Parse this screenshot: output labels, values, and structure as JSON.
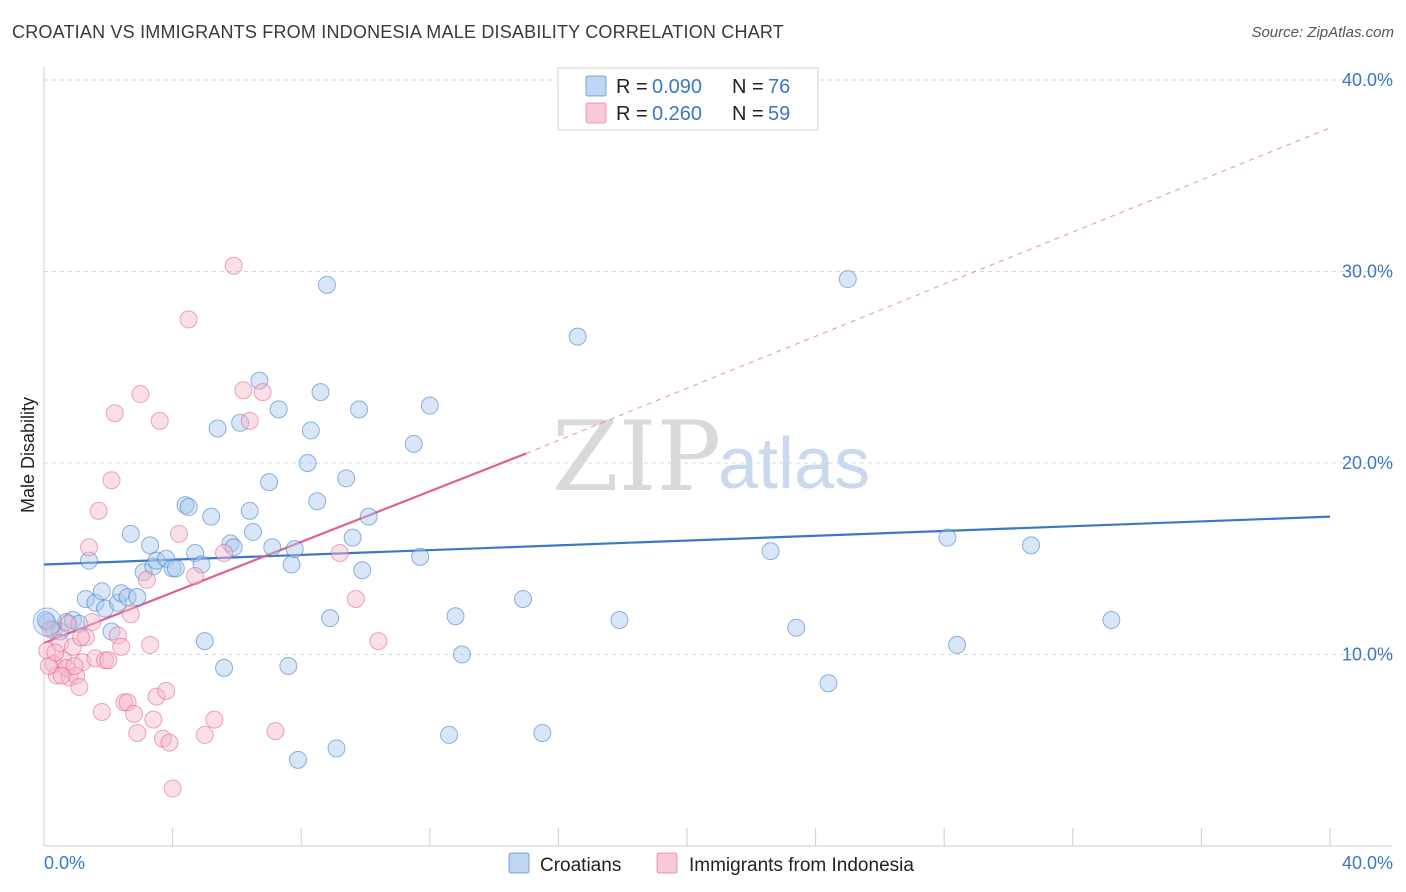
{
  "chart_data": {
    "type": "scatter",
    "title": "CROATIAN VS IMMIGRANTS FROM INDONESIA MALE DISABILITY CORRELATION CHART",
    "source": "Source: ZipAtlas.com",
    "ylabel": "Male Disability",
    "xlim": [
      0,
      40
    ],
    "ylim": [
      0,
      40
    ],
    "x_tick_labels": [
      "0.0%",
      "40.0%"
    ],
    "y_ticks": [
      10,
      20,
      30,
      40
    ],
    "y_tick_labels": [
      "10.0%",
      "20.0%",
      "30.0%",
      "40.0%"
    ],
    "watermark": {
      "zip": "ZIP",
      "atlas": "atlas"
    },
    "legend": {
      "entries": [
        {
          "r_label": "R = ",
          "r_value": "0.090",
          "n_label": "N = ",
          "n_value": "76"
        },
        {
          "r_label": "R = ",
          "r_value": "0.260",
          "n_label": "N = ",
          "n_value": "59"
        }
      ]
    },
    "series": [
      {
        "name": "Croatians",
        "color": "#3a78c6",
        "fill": "#a9c7ee",
        "trend": {
          "x": [
            0,
            40
          ],
          "y": [
            14.7,
            17.2
          ],
          "style": "solid"
        },
        "points": [
          [
            0.1,
            11.7
          ],
          [
            0.3,
            11.3
          ],
          [
            0.5,
            11.2
          ],
          [
            0.7,
            11.7
          ],
          [
            0.9,
            11.8
          ],
          [
            1.1,
            11.6
          ],
          [
            1.3,
            12.9
          ],
          [
            1.4,
            14.9
          ],
          [
            1.6,
            12.7
          ],
          [
            1.8,
            13.3
          ],
          [
            1.9,
            12.4
          ],
          [
            2.1,
            11.2
          ],
          [
            2.3,
            12.7
          ],
          [
            2.4,
            13.2
          ],
          [
            2.6,
            13.0
          ],
          [
            2.7,
            16.3
          ],
          [
            2.9,
            13.0
          ],
          [
            3.1,
            14.3
          ],
          [
            3.3,
            15.7
          ],
          [
            3.4,
            14.6
          ],
          [
            3.5,
            14.9
          ],
          [
            3.8,
            15.0
          ],
          [
            4.0,
            14.5
          ],
          [
            4.1,
            14.5
          ],
          [
            4.4,
            17.8
          ],
          [
            4.5,
            17.7
          ],
          [
            4.7,
            15.3
          ],
          [
            4.9,
            14.7
          ],
          [
            5.0,
            10.7
          ],
          [
            5.2,
            17.2
          ],
          [
            5.4,
            21.8
          ],
          [
            5.6,
            9.3
          ],
          [
            5.8,
            15.8
          ],
          [
            5.9,
            15.6
          ],
          [
            6.1,
            22.1
          ],
          [
            6.4,
            17.5
          ],
          [
            6.5,
            16.4
          ],
          [
            6.7,
            24.3
          ],
          [
            7.0,
            19.0
          ],
          [
            7.1,
            15.6
          ],
          [
            7.3,
            22.8
          ],
          [
            7.6,
            9.4
          ],
          [
            7.7,
            14.7
          ],
          [
            7.8,
            15.5
          ],
          [
            7.9,
            4.5
          ],
          [
            8.2,
            20.0
          ],
          [
            8.3,
            21.7
          ],
          [
            8.5,
            18.0
          ],
          [
            8.6,
            23.7
          ],
          [
            8.8,
            29.3
          ],
          [
            8.9,
            11.9
          ],
          [
            9.1,
            5.1
          ],
          [
            9.4,
            19.2
          ],
          [
            9.6,
            16.1
          ],
          [
            9.8,
            22.8
          ],
          [
            9.9,
            14.4
          ],
          [
            10.1,
            17.2
          ],
          [
            11.5,
            21.0
          ],
          [
            11.7,
            15.1
          ],
          [
            12.0,
            23.0
          ],
          [
            12.6,
            5.8
          ],
          [
            12.8,
            12.0
          ],
          [
            13.0,
            10.0
          ],
          [
            14.9,
            12.9
          ],
          [
            15.5,
            5.9
          ],
          [
            16.6,
            26.6
          ],
          [
            17.9,
            11.8
          ],
          [
            22.6,
            15.4
          ],
          [
            23.4,
            11.4
          ],
          [
            24.4,
            8.5
          ],
          [
            25.0,
            29.6
          ],
          [
            28.1,
            16.1
          ],
          [
            28.4,
            10.5
          ],
          [
            30.7,
            15.7
          ],
          [
            33.2,
            11.8
          ],
          [
            0.05,
            11.8
          ]
        ]
      },
      {
        "name": "Immigrants from Indonesia",
        "color": "#e0608e",
        "fill": "#f6b7cb",
        "trend": {
          "x": [
            0,
            15
          ],
          "y": [
            10.6,
            20.5
          ],
          "style": "solid",
          "ext_x": [
            15,
            40
          ],
          "ext_y": [
            20.5,
            37.5
          ],
          "ext_style": "dashed"
        },
        "points": [
          [
            0.1,
            10.2
          ],
          [
            0.2,
            11.3
          ],
          [
            0.3,
            9.5
          ],
          [
            0.4,
            8.9
          ],
          [
            0.5,
            10.6
          ],
          [
            0.6,
            9.7
          ],
          [
            0.7,
            9.3
          ],
          [
            0.8,
            8.8
          ],
          [
            0.9,
            10.4
          ],
          [
            1.0,
            8.9
          ],
          [
            1.1,
            8.3
          ],
          [
            1.2,
            9.6
          ],
          [
            1.3,
            10.9
          ],
          [
            1.4,
            15.6
          ],
          [
            1.5,
            11.7
          ],
          [
            1.6,
            9.8
          ],
          [
            1.7,
            17.5
          ],
          [
            1.8,
            7.0
          ],
          [
            1.9,
            9.7
          ],
          [
            2.0,
            9.7
          ],
          [
            2.1,
            19.1
          ],
          [
            2.2,
            22.6
          ],
          [
            2.3,
            11.0
          ],
          [
            2.4,
            10.4
          ],
          [
            2.5,
            7.5
          ],
          [
            2.6,
            7.5
          ],
          [
            2.7,
            12.1
          ],
          [
            2.8,
            6.9
          ],
          [
            2.9,
            5.9
          ],
          [
            3.0,
            23.6
          ],
          [
            3.2,
            13.9
          ],
          [
            3.3,
            10.5
          ],
          [
            3.4,
            6.6
          ],
          [
            3.5,
            7.8
          ],
          [
            3.6,
            22.2
          ],
          [
            3.7,
            5.6
          ],
          [
            3.8,
            8.1
          ],
          [
            3.9,
            5.4
          ],
          [
            4.0,
            3.0
          ],
          [
            4.2,
            16.3
          ],
          [
            4.5,
            27.5
          ],
          [
            4.7,
            14.1
          ],
          [
            5.0,
            5.8
          ],
          [
            5.3,
            6.6
          ],
          [
            5.6,
            15.3
          ],
          [
            5.9,
            30.3
          ],
          [
            6.2,
            23.8
          ],
          [
            6.4,
            22.2
          ],
          [
            6.8,
            23.7
          ],
          [
            7.2,
            6.0
          ],
          [
            9.2,
            15.3
          ],
          [
            9.7,
            12.9
          ],
          [
            10.4,
            10.7
          ],
          [
            0.15,
            9.4
          ],
          [
            0.35,
            10.1
          ],
          [
            0.55,
            8.9
          ],
          [
            0.75,
            11.6
          ],
          [
            0.95,
            9.4
          ],
          [
            1.15,
            10.9
          ]
        ]
      }
    ]
  }
}
